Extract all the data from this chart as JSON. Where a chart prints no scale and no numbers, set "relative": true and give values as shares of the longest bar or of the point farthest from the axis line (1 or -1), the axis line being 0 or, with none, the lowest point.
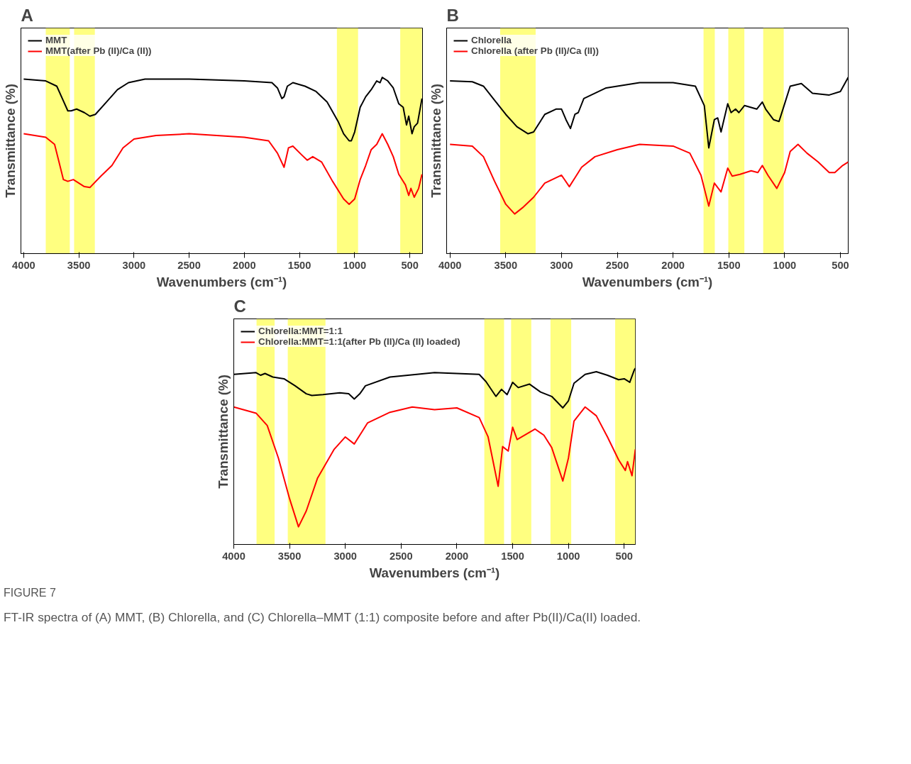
{
  "chart_data": [
    {
      "type": "line",
      "title": "A",
      "xlabel": "Wavenumbers (cm⁻¹)",
      "ylabel": "Transmittance (%)",
      "relative": true,
      "tick_labels": "x",
      "legend": "top left",
      "line_style": "solid",
      "xlim": [
        4025,
        385
      ],
      "xticks": [
        4000,
        3500,
        3000,
        2500,
        2000,
        1500,
        1000,
        500
      ],
      "series": [
        {
          "name": "MMT",
          "color": "#000000",
          "x": [
            4000,
            3800,
            3700,
            3650,
            3600,
            3570,
            3520,
            3450,
            3400,
            3350,
            3250,
            3150,
            3050,
            2900,
            2500,
            2000,
            1750,
            1700,
            1660,
            1640,
            1610,
            1560,
            1450,
            1350,
            1250,
            1150,
            1100,
            1050,
            1030,
            1000,
            950,
            900,
            850,
            800,
            770,
            750,
            700,
            650,
            600,
            560,
            530,
            510,
            480,
            460,
            430,
            390
          ],
          "values": [
            0.99,
            0.98,
            0.95,
            0.88,
            0.81,
            0.81,
            0.82,
            0.8,
            0.78,
            0.79,
            0.86,
            0.93,
            0.97,
            0.99,
            0.99,
            0.98,
            0.97,
            0.94,
            0.88,
            0.89,
            0.95,
            0.97,
            0.95,
            0.92,
            0.86,
            0.75,
            0.68,
            0.64,
            0.64,
            0.69,
            0.83,
            0.89,
            0.93,
            0.98,
            0.97,
            1.0,
            0.98,
            0.94,
            0.85,
            0.83,
            0.73,
            0.78,
            0.68,
            0.72,
            0.74,
            0.88
          ]
        },
        {
          "name": "MMT(after Pb (II)/Ca (II))",
          "color": "#ff0000",
          "x": [
            4000,
            3800,
            3720,
            3680,
            3640,
            3600,
            3550,
            3450,
            3400,
            3300,
            3200,
            3100,
            3000,
            2800,
            2500,
            2000,
            1780,
            1700,
            1640,
            1600,
            1560,
            1480,
            1430,
            1380,
            1300,
            1200,
            1100,
            1050,
            1000,
            950,
            900,
            850,
            800,
            750,
            700,
            650,
            600,
            540,
            510,
            490,
            460,
            420,
            390
          ],
          "values": [
            0.68,
            0.66,
            0.62,
            0.52,
            0.42,
            0.41,
            0.42,
            0.38,
            0.375,
            0.44,
            0.5,
            0.6,
            0.65,
            0.67,
            0.68,
            0.66,
            0.64,
            0.57,
            0.49,
            0.6,
            0.61,
            0.56,
            0.53,
            0.55,
            0.52,
            0.41,
            0.31,
            0.28,
            0.31,
            0.42,
            0.5,
            0.59,
            0.62,
            0.68,
            0.62,
            0.55,
            0.45,
            0.39,
            0.33,
            0.37,
            0.32,
            0.37,
            0.45
          ]
        }
      ],
      "bands": [
        {
          "axis": "x",
          "from": 3800,
          "to": 3582,
          "color": "#ffff80"
        },
        {
          "axis": "x",
          "from": 3543,
          "to": 3355,
          "color": "#ffff80"
        },
        {
          "axis": "x",
          "from": 1161,
          "to": 969,
          "color": "#ffff80"
        },
        {
          "axis": "x",
          "from": 587,
          "to": 390,
          "color": "#ffff80"
        }
      ]
    },
    {
      "type": "line",
      "title": "B",
      "xlabel": "Wavenumbers (cm⁻¹)",
      "ylabel": "Transmittance (%)",
      "relative": true,
      "tick_labels": "x",
      "legend": "top left",
      "line_style": "solid",
      "xlim": [
        4030,
        430
      ],
      "xticks": [
        4000,
        3500,
        3000,
        2500,
        2000,
        1500,
        1000,
        500
      ],
      "series": [
        {
          "name": "Chlorella",
          "color": "#000000",
          "x": [
            4000,
            3800,
            3700,
            3600,
            3500,
            3400,
            3300,
            3250,
            3150,
            3050,
            3000,
            2960,
            2920,
            2880,
            2850,
            2800,
            2600,
            2300,
            2000,
            1800,
            1720,
            1680,
            1630,
            1600,
            1570,
            1510,
            1480,
            1440,
            1410,
            1360,
            1250,
            1200,
            1170,
            1100,
            1050,
            1000,
            950,
            850,
            750,
            600,
            500,
            430
          ],
          "values": [
            0.98,
            0.975,
            0.95,
            0.87,
            0.79,
            0.72,
            0.68,
            0.69,
            0.79,
            0.82,
            0.82,
            0.76,
            0.71,
            0.79,
            0.8,
            0.88,
            0.94,
            0.97,
            0.97,
            0.95,
            0.84,
            0.6,
            0.76,
            0.77,
            0.69,
            0.85,
            0.8,
            0.82,
            0.8,
            0.84,
            0.82,
            0.86,
            0.82,
            0.76,
            0.75,
            0.85,
            0.95,
            0.965,
            0.91,
            0.9,
            0.92,
            1.0
          ]
        },
        {
          "name": "Chlorella (after Pb (II)/Ca (II))",
          "color": "#ff0000",
          "x": [
            4000,
            3800,
            3700,
            3600,
            3500,
            3420,
            3350,
            3250,
            3150,
            3050,
            3000,
            2930,
            2880,
            2820,
            2700,
            2500,
            2300,
            2000,
            1850,
            1750,
            1680,
            1630,
            1570,
            1510,
            1470,
            1400,
            1300,
            1240,
            1200,
            1150,
            1070,
            1000,
            950,
            880,
            800,
            700,
            600,
            550,
            480,
            430
          ],
          "values": [
            0.62,
            0.61,
            0.55,
            0.41,
            0.28,
            0.225,
            0.26,
            0.32,
            0.4,
            0.43,
            0.445,
            0.38,
            0.43,
            0.49,
            0.55,
            0.59,
            0.62,
            0.61,
            0.57,
            0.445,
            0.27,
            0.4,
            0.35,
            0.485,
            0.44,
            0.45,
            0.47,
            0.46,
            0.5,
            0.445,
            0.37,
            0.46,
            0.58,
            0.62,
            0.57,
            0.52,
            0.46,
            0.46,
            0.5,
            0.52
          ]
        }
      ],
      "bands": [
        {
          "axis": "x",
          "from": 3550,
          "to": 3232,
          "color": "#ffff80"
        },
        {
          "axis": "x",
          "from": 1727,
          "to": 1626,
          "color": "#ffff80"
        },
        {
          "axis": "x",
          "from": 1505,
          "to": 1361,
          "color": "#ffff80"
        },
        {
          "axis": "x",
          "from": 1192,
          "to": 1008,
          "color": "#ffff80"
        }
      ]
    },
    {
      "type": "line",
      "title": "C",
      "xlabel": "Wavenumbers (cm⁻¹)",
      "ylabel": "Transmittance (%)",
      "relative": true,
      "tick_labels": "x",
      "legend": "top left",
      "line_style": "solid",
      "xlim": [
        4000,
        400
      ],
      "xticks": [
        4000,
        3500,
        3000,
        2500,
        2000,
        1500,
        1000,
        500
      ],
      "series": [
        {
          "name": "Chlorella:MMT=1:1",
          "color": "#000000",
          "x": [
            4000,
            3800,
            3760,
            3720,
            3650,
            3550,
            3450,
            3350,
            3300,
            3200,
            3050,
            2970,
            2920,
            2870,
            2820,
            2600,
            2200,
            1800,
            1740,
            1650,
            1600,
            1550,
            1500,
            1450,
            1350,
            1250,
            1150,
            1050,
            1000,
            950,
            850,
            750,
            650,
            550,
            500,
            450,
            410,
            400
          ],
          "values": [
            0.965,
            0.975,
            0.96,
            0.97,
            0.95,
            0.94,
            0.9,
            0.855,
            0.845,
            0.85,
            0.86,
            0.855,
            0.825,
            0.855,
            0.9,
            0.95,
            0.975,
            0.965,
            0.925,
            0.84,
            0.88,
            0.85,
            0.92,
            0.89,
            0.91,
            0.865,
            0.84,
            0.775,
            0.815,
            0.915,
            0.965,
            0.98,
            0.96,
            0.935,
            0.94,
            0.92,
            0.99,
            1.0
          ]
        },
        {
          "name": "Chlorella:MMT=1:1(after Pb (II)/Ca (II) loaded)",
          "color": "#ff0000",
          "x": [
            4000,
            3800,
            3700,
            3600,
            3500,
            3420,
            3350,
            3250,
            3100,
            3000,
            2920,
            2850,
            2800,
            2600,
            2400,
            2200,
            2000,
            1800,
            1720,
            1630,
            1590,
            1540,
            1500,
            1460,
            1300,
            1220,
            1150,
            1050,
            1000,
            950,
            850,
            750,
            650,
            550,
            490,
            470,
            430,
            400
          ],
          "values": [
            0.78,
            0.745,
            0.675,
            0.49,
            0.26,
            0.1,
            0.19,
            0.375,
            0.54,
            0.61,
            0.57,
            0.64,
            0.69,
            0.75,
            0.78,
            0.765,
            0.775,
            0.72,
            0.61,
            0.33,
            0.555,
            0.53,
            0.665,
            0.595,
            0.655,
            0.62,
            0.55,
            0.36,
            0.49,
            0.7,
            0.78,
            0.73,
            0.61,
            0.48,
            0.42,
            0.47,
            0.39,
            0.54
          ]
        }
      ],
      "bands": [
        {
          "axis": "x",
          "from": 3796,
          "to": 3634,
          "color": "#ffff80"
        },
        {
          "axis": "x",
          "from": 3516,
          "to": 3178,
          "color": "#ffff80"
        },
        {
          "axis": "x",
          "from": 1754,
          "to": 1577,
          "color": "#ffff80"
        },
        {
          "axis": "x",
          "from": 1514,
          "to": 1333,
          "color": "#ffff80"
        },
        {
          "axis": "x",
          "from": 1161,
          "to": 975,
          "color": "#ffff80"
        },
        {
          "axis": "x",
          "from": 581,
          "to": 400,
          "color": "#ffff80"
        }
      ],
      "annotations": [
        "FIGURE 7",
        "FT-IR spectra of (A) MMT, (B) Chlorella, and (C) Chlorella–MMT (1:1) composite before and after Pb(II)/Ca(II) loaded."
      ]
    }
  ]
}
